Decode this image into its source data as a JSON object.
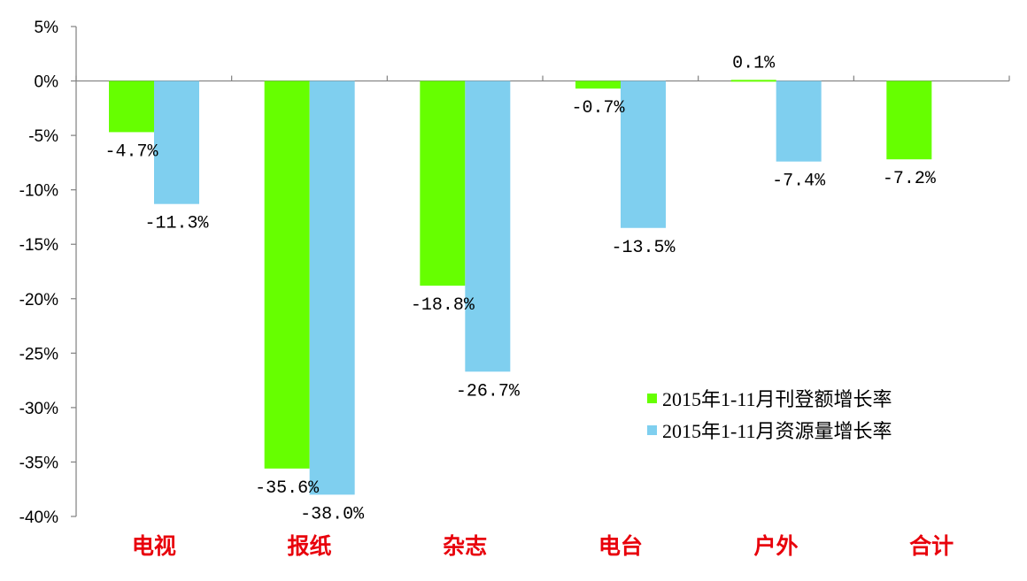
{
  "chart_data": {
    "type": "bar",
    "categories": [
      "电视",
      "报纸",
      "杂志",
      "电台",
      "户外",
      "合计"
    ],
    "series": [
      {
        "name": "2015年1-11月刊登额增长率",
        "color": "#66ff00",
        "values": [
          -4.7,
          -35.6,
          -18.8,
          -0.7,
          0.1,
          -7.2
        ],
        "labels": [
          "-4.7%",
          "-35.6%",
          "-18.8%",
          "-0.7%",
          "0.1%",
          "-7.2%"
        ]
      },
      {
        "name": "2015年1-11月资源量增长率",
        "color": "#7fcfef",
        "values": [
          -11.3,
          -38.0,
          -26.7,
          -13.5,
          -7.4,
          null
        ],
        "labels": [
          "-11.3%",
          "-38.0%",
          "-26.7%",
          "-13.5%",
          "-7.4%",
          null
        ]
      }
    ],
    "yticks": [
      "5%",
      "0%",
      "-5%",
      "-10%",
      "-15%",
      "-20%",
      "-25%",
      "-30%",
      "-35%",
      "-40%"
    ],
    "ylim": [
      -40,
      5
    ],
    "category_label_color": "#e8000b",
    "legend_position": "bottom-right",
    "grid": false
  }
}
